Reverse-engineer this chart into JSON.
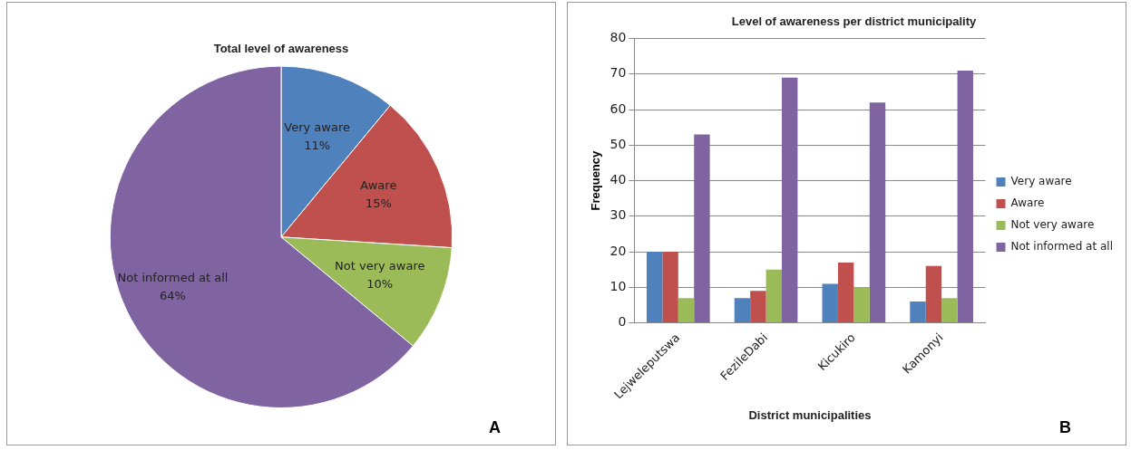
{
  "chart_data": [
    {
      "type": "pie",
      "title": "Total level of awareness",
      "categories": [
        "Very aware",
        "Aware",
        "Not very aware",
        "Not informed at all"
      ],
      "values": [
        11,
        15,
        10,
        64
      ],
      "colors": [
        "#4f81bd",
        "#c0504d",
        "#9bbb59",
        "#8064a2"
      ],
      "value_labels": [
        "11%",
        "15%",
        "10%",
        "64%"
      ],
      "annotations": [
        "A"
      ]
    },
    {
      "type": "bar",
      "title": "Level of awareness per district municipality",
      "xlabel": "District municipalities",
      "ylabel": "Frequency",
      "categories": [
        "Lejweleputswa",
        "FezileDabi",
        "Kicukiro",
        "Kamonyi"
      ],
      "series": [
        {
          "name": "Very aware",
          "color": "#4f81bd",
          "values": [
            20,
            7,
            11,
            6
          ]
        },
        {
          "name": "Aware",
          "color": "#c0504d",
          "values": [
            20,
            9,
            17,
            16
          ]
        },
        {
          "name": "Not very aware",
          "color": "#9bbb59",
          "values": [
            7,
            15,
            10,
            7
          ]
        },
        {
          "name": "Not informed at all",
          "color": "#8064a2",
          "values": [
            53,
            69,
            62,
            71
          ]
        }
      ],
      "ylim": [
        0,
        80
      ],
      "yticks": [
        0,
        10,
        20,
        30,
        40,
        50,
        60,
        70,
        80
      ],
      "grid": "y",
      "legend": "right",
      "annotations": [
        "B"
      ]
    }
  ]
}
